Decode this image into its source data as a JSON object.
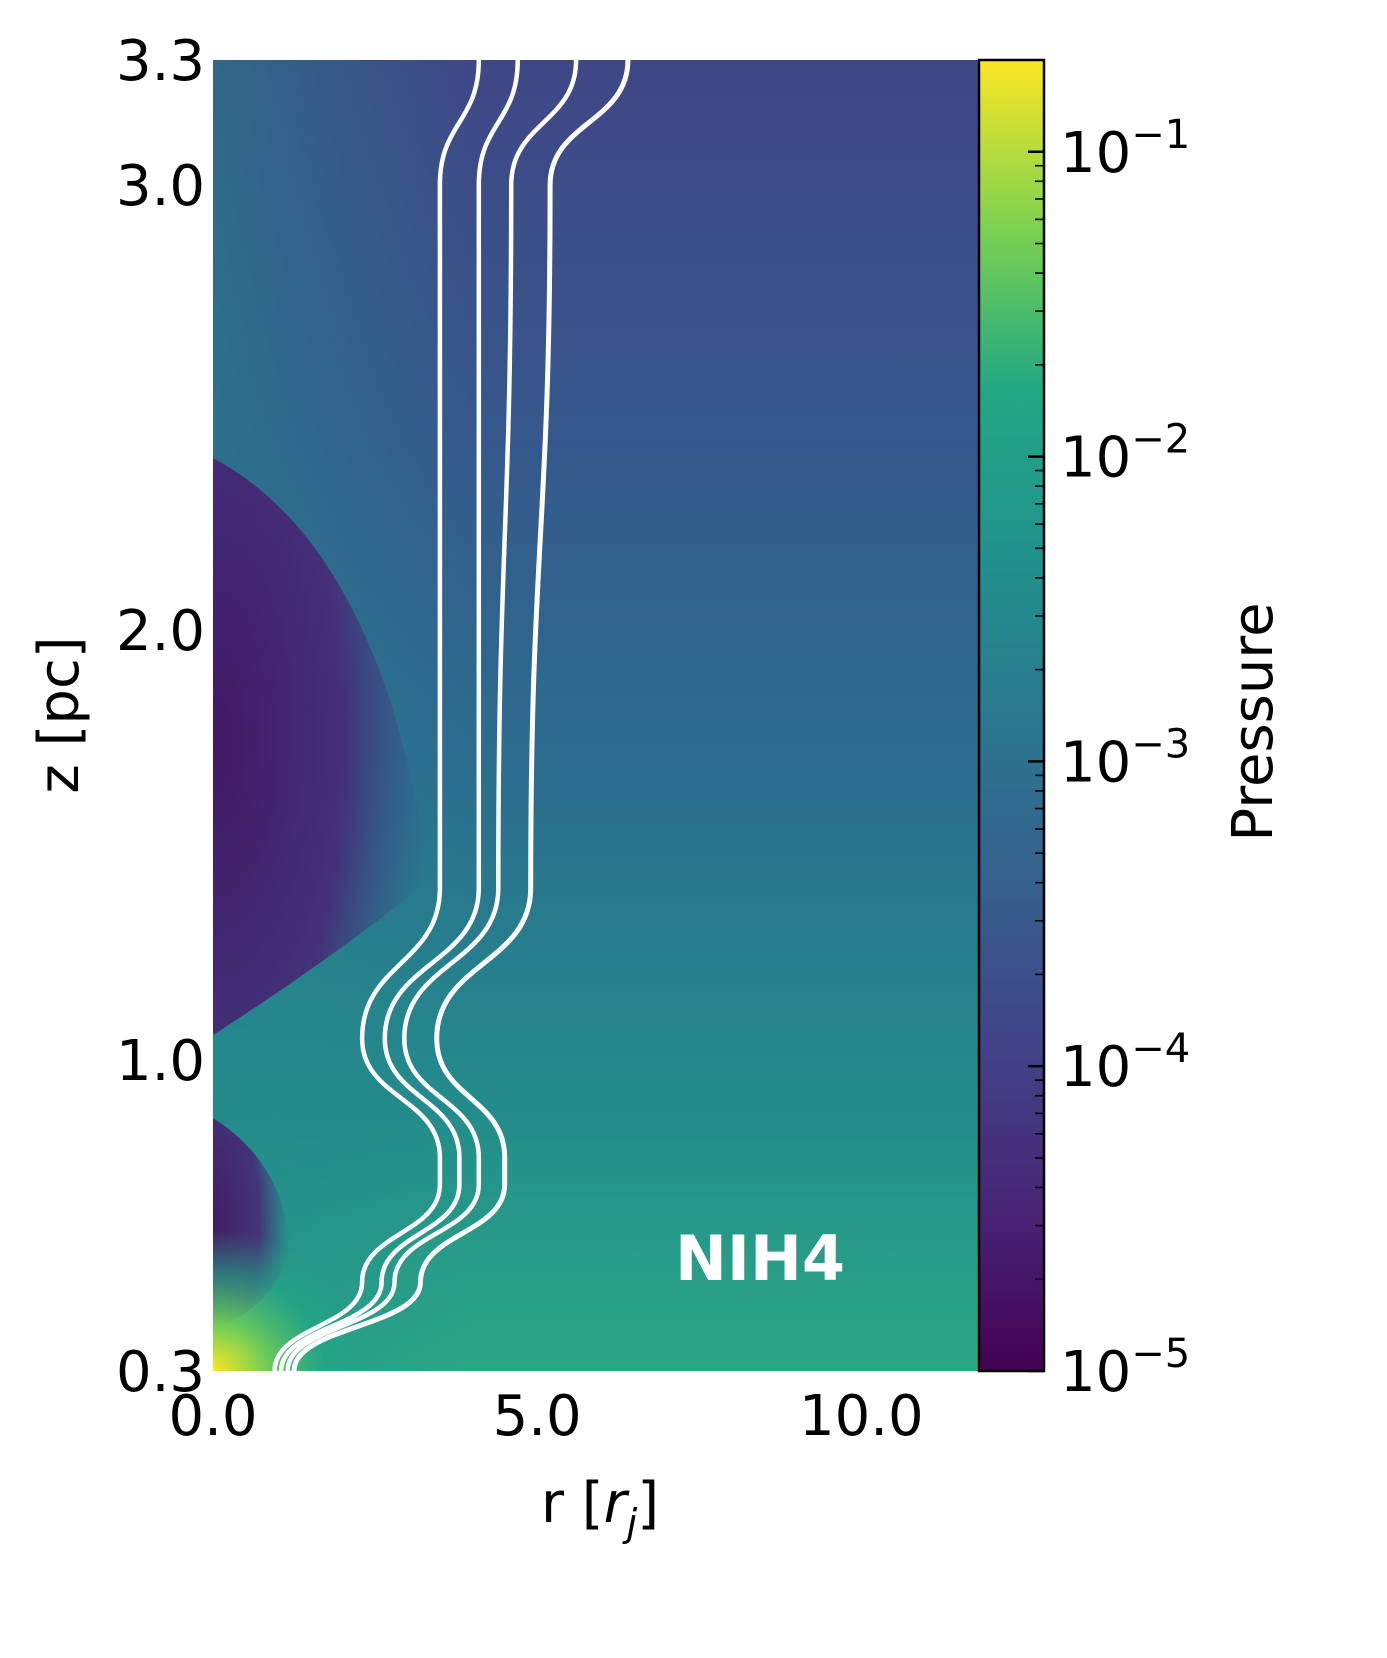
{
  "chart_data": {
    "type": "heatmap",
    "subtype": "pressure map with streamlines",
    "title": "",
    "panel_label": "NIH4",
    "xlabel": "r [",
    "xlabel_symbol": "r",
    "xlabel_subscript": "j",
    "xlabel_close": "]",
    "ylabel": "z [pc]",
    "xlim": [
      0.0,
      11.8
    ],
    "ylim": [
      0.3,
      3.3
    ],
    "xticks": [
      0.0,
      5.0,
      10.0
    ],
    "xtick_labels": [
      "0.0",
      "5.0",
      "10.0"
    ],
    "yticks": [
      0.3,
      1.0,
      2.0,
      3.0,
      3.3
    ],
    "ytick_labels": [
      "0.3",
      "1.0",
      "2.0",
      "3.0",
      "3.3"
    ],
    "colorbar": {
      "label": "Pressure",
      "colormap": "viridis",
      "scale": "log",
      "range": [
        1e-05,
        0.2
      ],
      "tick_values": [
        1e-05,
        0.0001,
        0.001,
        0.01,
        0.1
      ],
      "tick_base": [
        "10",
        "10",
        "10",
        "10",
        "10"
      ],
      "tick_exponents": [
        "−5",
        "−4",
        "−3",
        "−2",
        "−1"
      ]
    },
    "streamlines": [
      {
        "r": [
          0.95,
          2.3,
          3.5,
          3.5,
          2.3,
          3.5,
          3.5,
          4.1
        ],
        "z": [
          0.3,
          0.5,
          0.72,
          0.78,
          1.05,
          1.4,
          3.0,
          3.3
        ]
      },
      {
        "r": [
          1.05,
          2.6,
          3.8,
          3.8,
          2.65,
          4.1,
          4.1,
          4.7
        ],
        "z": [
          0.3,
          0.5,
          0.72,
          0.78,
          1.05,
          1.4,
          3.0,
          3.3
        ]
      },
      {
        "r": [
          1.15,
          2.8,
          4.1,
          4.1,
          2.95,
          4.4,
          4.6,
          5.6
        ],
        "z": [
          0.3,
          0.5,
          0.72,
          0.78,
          1.05,
          1.4,
          3.0,
          3.3
        ]
      },
      {
        "r": [
          1.25,
          3.2,
          4.5,
          4.5,
          3.45,
          4.9,
          5.2,
          6.4
        ],
        "z": [
          0.3,
          0.5,
          0.72,
          0.78,
          1.05,
          1.4,
          3.0,
          3.3
        ]
      }
    ],
    "colors": {
      "background": "#ffffff",
      "streamline": "#ffffff",
      "panel_label": "#ffffff",
      "field_low": "#440154",
      "field_mid": "#2f6f8e",
      "field_high": "#fde725"
    }
  }
}
